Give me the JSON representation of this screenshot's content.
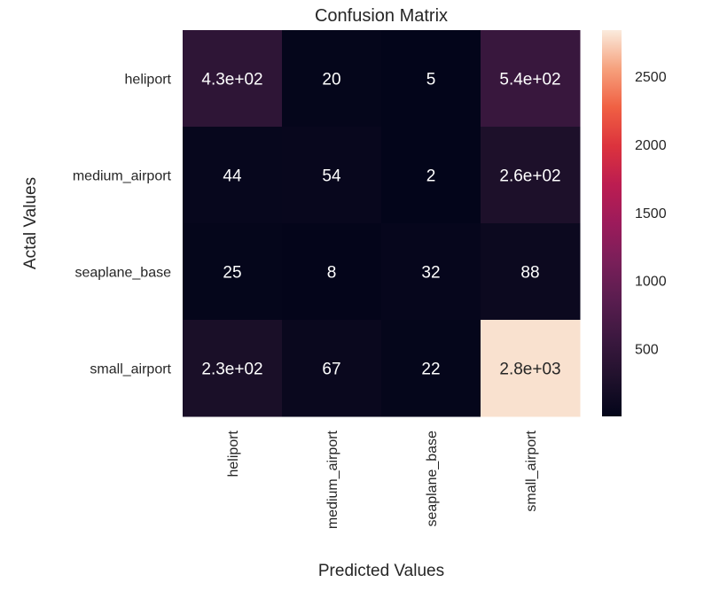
{
  "chart_data": {
    "type": "heatmap",
    "title": "Confusion Matrix",
    "xlabel": "Predicted Values",
    "ylabel": "Actal Values",
    "row_labels": [
      "heliport",
      "medium_airport",
      "seaplane_base",
      "small_airport"
    ],
    "col_labels": [
      "heliport",
      "medium_airport",
      "seaplane_base",
      "small_airport"
    ],
    "values": [
      [
        430,
        20,
        5,
        540
      ],
      [
        44,
        54,
        2,
        260
      ],
      [
        25,
        8,
        32,
        88
      ],
      [
        230,
        67,
        22,
        2800
      ]
    ],
    "annotations": [
      [
        "4.3e+02",
        "20",
        "5",
        "5.4e+02"
      ],
      [
        "44",
        "54",
        "2",
        "2.6e+02"
      ],
      [
        "25",
        "8",
        "32",
        "88"
      ],
      [
        "2.3e+02",
        "67",
        "22",
        "2.8e+03"
      ]
    ],
    "colorbar": {
      "vmin": 2,
      "vmax": 2840,
      "ticks": [
        500,
        1000,
        1500,
        2000,
        2500
      ],
      "tick_labels": [
        "500",
        "1000",
        "1500",
        "2000",
        "2500"
      ]
    },
    "colormap": "rocket",
    "colors": {
      "annotation_light": "#ffffff",
      "annotation_dark": "#262626",
      "tick_label": "#262626"
    },
    "grid": false
  }
}
